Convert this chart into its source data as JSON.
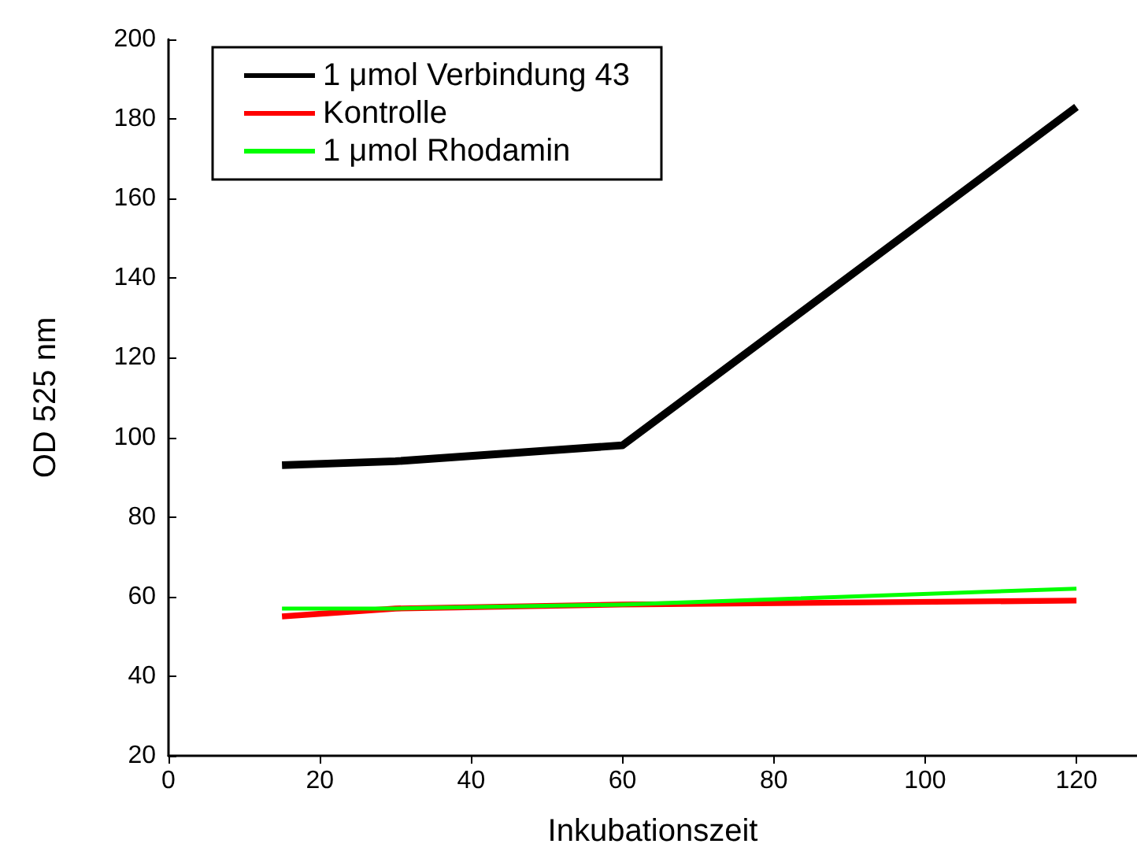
{
  "chart_data": {
    "type": "line",
    "xlabel": "Inkubationszeit",
    "ylabel": "OD 525 nm",
    "x": [
      15,
      30,
      60,
      120
    ],
    "series": [
      {
        "name": "1 μmol Verbindung 43",
        "color": "#000000",
        "values": [
          93,
          94,
          98,
          183
        ]
      },
      {
        "name": "Kontrolle",
        "color": "#ff0000",
        "values": [
          55,
          57,
          58,
          59
        ]
      },
      {
        "name": "1 μmol Rhodamin",
        "color": "#00ff00",
        "values": [
          57,
          57,
          58,
          62
        ]
      }
    ],
    "xlim": [
      0,
      128
    ],
    "xticks": [
      0,
      20,
      40,
      60,
      80,
      100,
      120
    ],
    "ylim": [
      20,
      200
    ],
    "yticks": [
      20,
      40,
      60,
      80,
      100,
      120,
      140,
      160,
      180,
      200
    ],
    "grid": false,
    "legend": "top left",
    "marker": "none",
    "line_style": "solid"
  }
}
